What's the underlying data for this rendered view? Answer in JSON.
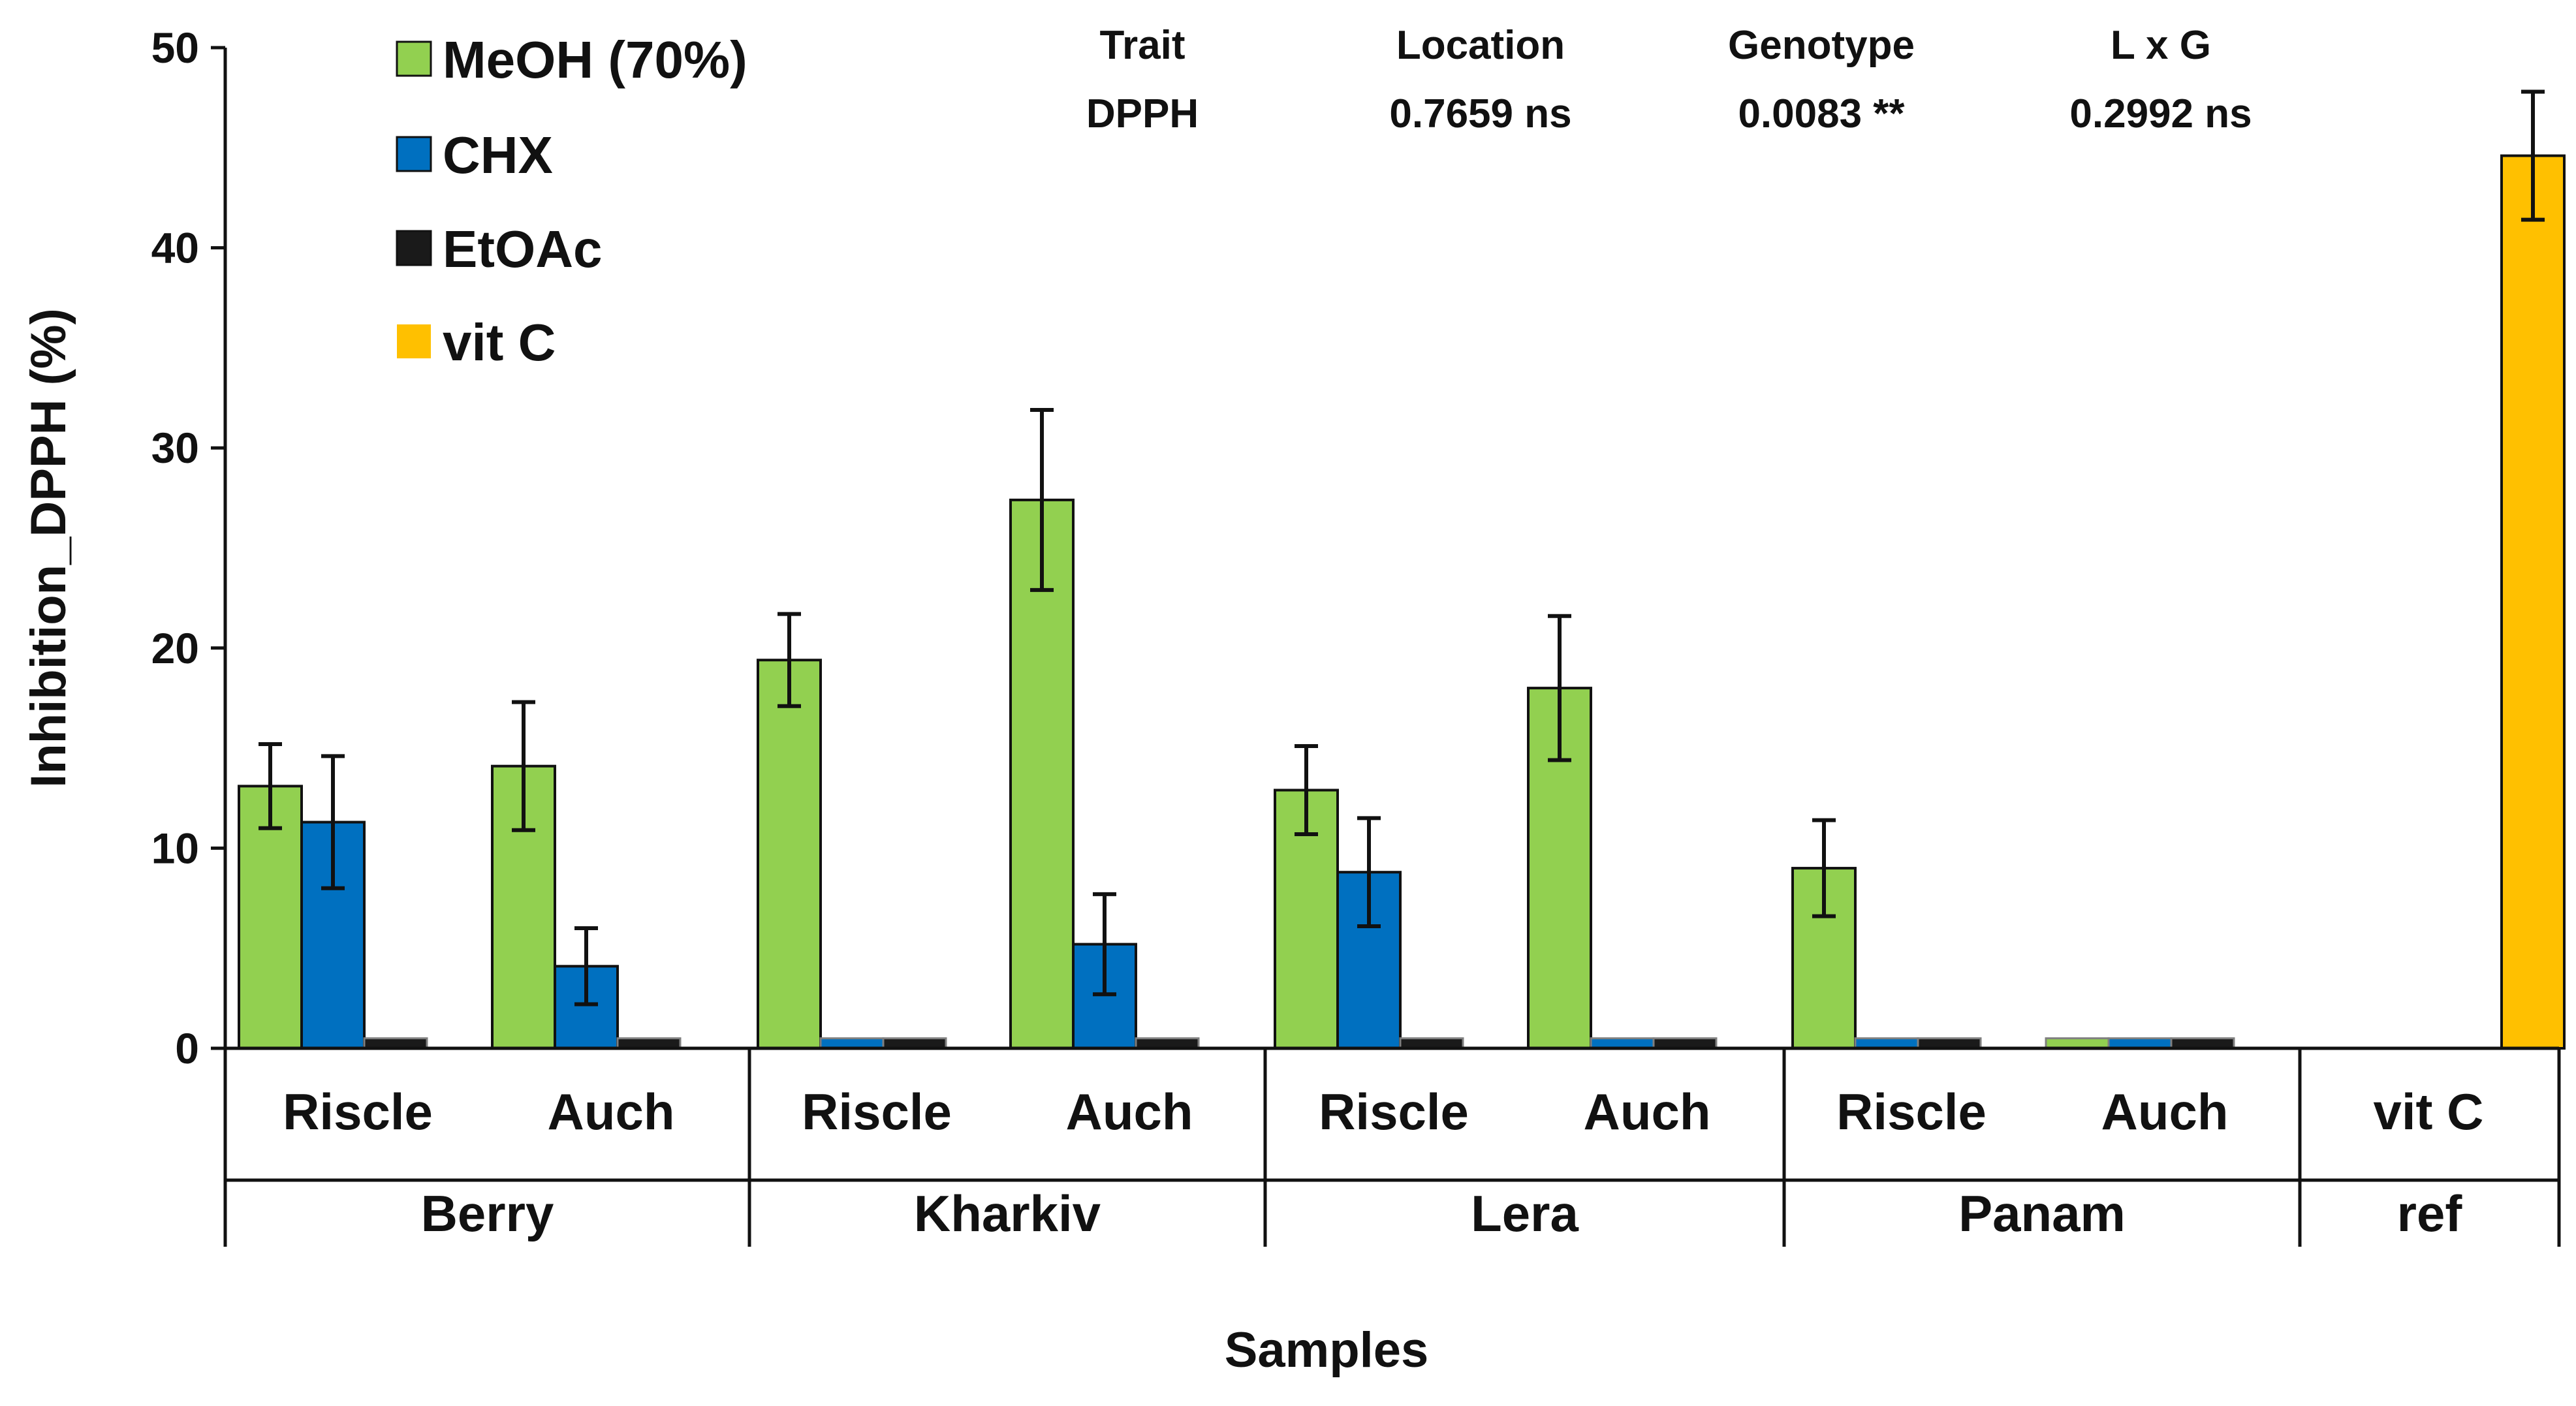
{
  "chart_data": {
    "type": "bar",
    "title": "",
    "xlabel": "Samples",
    "ylabel": "Inhibition_DPPH (%)",
    "ylim": [
      0,
      50
    ],
    "yticks": [
      "0",
      "10",
      "20",
      "30",
      "40",
      "50"
    ],
    "grid": false,
    "legend_position": "top-left",
    "groups": [
      {
        "name": "Berry",
        "subcategories": [
          "Riscle",
          "Auch"
        ]
      },
      {
        "name": "Kharkiv",
        "subcategories": [
          "Riscle",
          "Auch"
        ]
      },
      {
        "name": "Lera",
        "subcategories": [
          "Riscle",
          "Auch"
        ]
      },
      {
        "name": "Panam",
        "subcategories": [
          "Riscle",
          "Auch"
        ]
      },
      {
        "name": "ref",
        "subcategories": [
          "vit C"
        ]
      }
    ],
    "series": [
      {
        "name": "MeOH (70%)",
        "color": "#92d050",
        "values": [
          13.1,
          14.1,
          19.4,
          27.4,
          12.9,
          18.0,
          9.0,
          0.5,
          null
        ],
        "errors": [
          2.1,
          3.2,
          2.3,
          4.5,
          2.2,
          3.6,
          2.4,
          0.0,
          null
        ]
      },
      {
        "name": "CHX",
        "color": "#0070c0",
        "values": [
          11.3,
          4.1,
          0.5,
          5.2,
          8.8,
          0.5,
          0.5,
          0.5,
          null
        ],
        "errors": [
          3.3,
          1.9,
          0.0,
          2.5,
          2.7,
          0.0,
          0.0,
          0.0,
          null
        ]
      },
      {
        "name": "EtOAc",
        "color": "#1a1a1a",
        "values": [
          0.5,
          0.5,
          0.5,
          0.5,
          0.5,
          0.5,
          0.5,
          0.5,
          null
        ],
        "errors": [
          0,
          0,
          0,
          0,
          0,
          0,
          0,
          0,
          null
        ]
      },
      {
        "name": "vit C",
        "color": "#ffc000",
        "values": [
          null,
          null,
          null,
          null,
          null,
          null,
          null,
          null,
          44.6
        ],
        "errors": [
          null,
          null,
          null,
          null,
          null,
          null,
          null,
          null,
          3.2
        ]
      }
    ],
    "annotation_table": {
      "headers": [
        "Trait",
        "Location",
        "Genotype",
        "L x G"
      ],
      "values": [
        "DPPH",
        "0.7659 ns",
        "0.0083 **",
        "0.2992 ns"
      ]
    }
  }
}
